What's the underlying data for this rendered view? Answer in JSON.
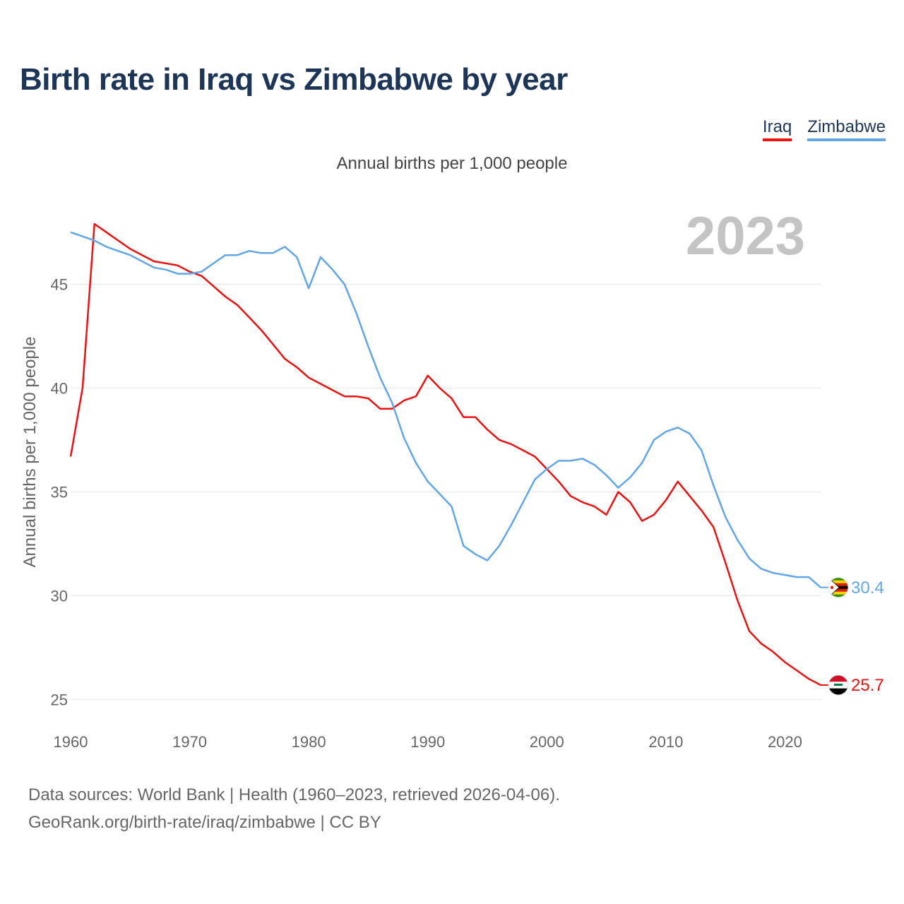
{
  "header": {
    "title": "Birth rate in Iraq vs Zimbabwe by year",
    "subtitle": "Annual births per 1,000 people"
  },
  "legend": [
    {
      "label": "Iraq",
      "color": "#ee1111"
    },
    {
      "label": "Zimbabwe",
      "color": "#63a6e6"
    }
  ],
  "footer": {
    "line1": "Data sources: World Bank | Health (1960–2023, retrieved 2026-04-06).",
    "line2": "GeoRank.org/birth-rate/iraq/zimbabwe | CC BY"
  },
  "chart_data": {
    "type": "line",
    "title": "Birth rate in Iraq vs Zimbabwe by year",
    "ylabel": "Annual births per 1,000 people",
    "xlabel": "",
    "year_label": "2023",
    "xlim": [
      1960,
      2023
    ],
    "ylim": [
      24,
      49.5
    ],
    "x_ticks": [
      1960,
      1970,
      1980,
      1990,
      2000,
      2010,
      2020
    ],
    "y_ticks": [
      25,
      30,
      35,
      40,
      45
    ],
    "grid": true,
    "x": [
      1960,
      1961,
      1962,
      1963,
      1964,
      1965,
      1966,
      1967,
      1968,
      1969,
      1970,
      1971,
      1972,
      1973,
      1974,
      1975,
      1976,
      1977,
      1978,
      1979,
      1980,
      1981,
      1982,
      1983,
      1984,
      1985,
      1986,
      1987,
      1988,
      1989,
      1990,
      1991,
      1992,
      1993,
      1994,
      1995,
      1996,
      1997,
      1998,
      1999,
      2000,
      2001,
      2002,
      2003,
      2004,
      2005,
      2006,
      2007,
      2008,
      2009,
      2010,
      2011,
      2012,
      2013,
      2014,
      2015,
      2016,
      2017,
      2018,
      2019,
      2020,
      2021,
      2022,
      2023
    ],
    "series": [
      {
        "name": "Iraq",
        "color": "#ee1111",
        "end_label": "25.7",
        "values": [
          36.7,
          40.0,
          47.9,
          47.5,
          47.1,
          46.7,
          46.4,
          46.1,
          46.0,
          45.9,
          45.6,
          45.4,
          44.9,
          44.4,
          44.0,
          43.4,
          42.8,
          42.1,
          41.4,
          41.0,
          40.5,
          40.2,
          39.9,
          39.6,
          39.6,
          39.5,
          39.0,
          39.0,
          39.4,
          39.6,
          40.6,
          40.0,
          39.5,
          38.6,
          38.6,
          38.0,
          37.5,
          37.3,
          37.0,
          36.7,
          36.1,
          35.5,
          34.8,
          34.5,
          34.3,
          33.9,
          35.0,
          34.5,
          33.6,
          33.9,
          34.6,
          35.5,
          34.8,
          34.1,
          33.3,
          31.6,
          29.8,
          28.3,
          27.7,
          27.3,
          26.8,
          26.4,
          26.0,
          25.7
        ]
      },
      {
        "name": "Zimbabwe",
        "color": "#63a6e6",
        "end_label": "30.4",
        "values": [
          47.5,
          47.3,
          47.1,
          46.8,
          46.6,
          46.4,
          46.1,
          45.8,
          45.7,
          45.5,
          45.5,
          45.6,
          46.0,
          46.4,
          46.4,
          46.6,
          46.5,
          46.5,
          46.8,
          46.3,
          44.8,
          46.3,
          45.7,
          45.0,
          43.6,
          42.0,
          40.5,
          39.3,
          37.6,
          36.4,
          35.5,
          34.9,
          34.3,
          32.4,
          32.0,
          31.7,
          32.4,
          33.4,
          34.5,
          35.6,
          36.1,
          36.5,
          36.5,
          36.6,
          36.3,
          35.8,
          35.2,
          35.7,
          36.4,
          37.5,
          37.9,
          38.1,
          37.8,
          37.0,
          35.3,
          33.8,
          32.7,
          31.8,
          31.3,
          31.1,
          31.0,
          30.9,
          30.9,
          30.4
        ]
      }
    ]
  }
}
